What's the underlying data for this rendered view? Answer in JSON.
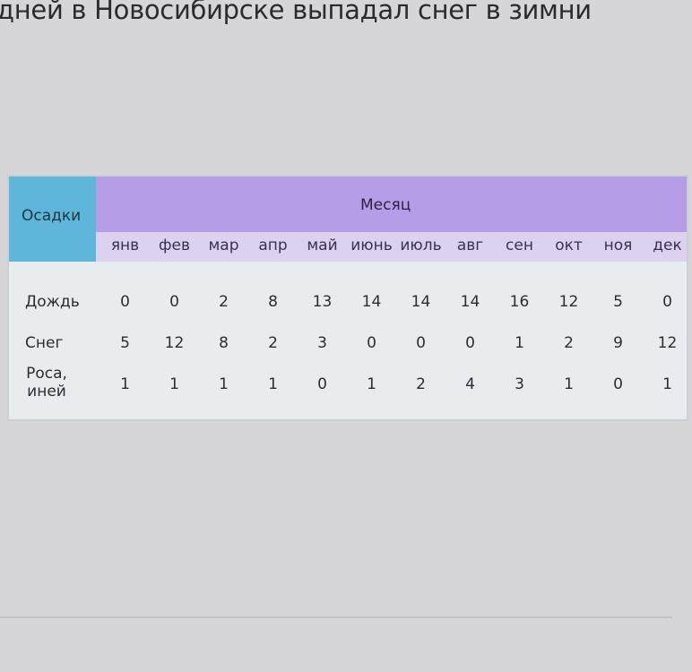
{
  "heading": "дней в Новосибирске выпадал снег в зимни",
  "table": {
    "corner_header": "Осадки",
    "group_header": "Месяц",
    "months": [
      "янв",
      "фев",
      "мар",
      "апр",
      "май",
      "июнь",
      "июль",
      "авг",
      "сен",
      "окт",
      "ноя",
      "дек"
    ],
    "rows": [
      {
        "label": "Дождь",
        "values": [
          "0",
          "0",
          "2",
          "8",
          "13",
          "14",
          "14",
          "14",
          "16",
          "12",
          "5",
          "0"
        ]
      },
      {
        "label": "Снег",
        "values": [
          "5",
          "12",
          "8",
          "2",
          "3",
          "0",
          "0",
          "0",
          "1",
          "2",
          "9",
          "12"
        ]
      },
      {
        "label": "Роса, иней",
        "values": [
          "1",
          "1",
          "1",
          "1",
          "0",
          "1",
          "2",
          "4",
          "3",
          "1",
          "0",
          "1"
        ]
      }
    ]
  },
  "colors": {
    "corner": "#5eb6db",
    "month_header": "#b59de8",
    "months_row": "#dcd1ef"
  }
}
